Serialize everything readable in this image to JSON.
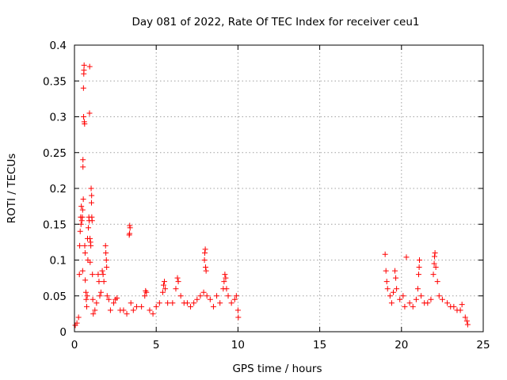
{
  "chart_data": {
    "type": "scatter",
    "title": "Day 081 of 2022, Rate Of TEC Index for receiver ceu1",
    "xlabel": "GPS time / hours",
    "ylabel": "ROTI / TECUs",
    "xlim": [
      0,
      25
    ],
    "ylim": [
      0,
      0.4
    ],
    "x_ticks": [
      0,
      5,
      10,
      15,
      20,
      25
    ],
    "x_tick_labels": [
      "0",
      "5",
      "10",
      "15",
      "20",
      "25"
    ],
    "y_ticks": [
      0,
      0.05,
      0.1,
      0.15,
      0.2,
      0.25,
      0.3,
      0.35,
      0.4
    ],
    "y_tick_labels": [
      "0",
      "0.05",
      "0.1",
      "0.15",
      "0.2",
      "0.25",
      "0.3",
      "0.35",
      "0.4"
    ],
    "grid": true,
    "marker": "plus",
    "marker_color": "#ff0000",
    "series": [
      {
        "name": "ROTI",
        "points": [
          [
            0.05,
            0.009
          ],
          [
            0.15,
            0.012
          ],
          [
            0.25,
            0.02
          ],
          [
            0.3,
            0.08
          ],
          [
            0.32,
            0.12
          ],
          [
            0.35,
            0.14
          ],
          [
            0.38,
            0.16
          ],
          [
            0.4,
            0.15
          ],
          [
            0.42,
            0.175
          ],
          [
            0.45,
            0.155
          ],
          [
            0.48,
            0.16
          ],
          [
            0.5,
            0.17
          ],
          [
            0.5,
            0.085
          ],
          [
            0.52,
            0.24
          ],
          [
            0.52,
            0.23
          ],
          [
            0.54,
            0.185
          ],
          [
            0.55,
            0.34
          ],
          [
            0.56,
            0.3
          ],
          [
            0.57,
            0.36
          ],
          [
            0.58,
            0.365
          ],
          [
            0.59,
            0.372
          ],
          [
            0.6,
            0.293
          ],
          [
            0.62,
            0.29
          ],
          [
            0.63,
            0.12
          ],
          [
            0.65,
            0.11
          ],
          [
            0.66,
            0.072
          ],
          [
            0.7,
            0.055
          ],
          [
            0.72,
            0.045
          ],
          [
            0.75,
            0.035
          ],
          [
            0.78,
            0.05
          ],
          [
            0.8,
            0.13
          ],
          [
            0.82,
            0.1
          ],
          [
            0.85,
            0.145
          ],
          [
            0.88,
            0.16
          ],
          [
            0.9,
            0.155
          ],
          [
            0.92,
            0.305
          ],
          [
            0.93,
            0.37
          ],
          [
            0.95,
            0.13
          ],
          [
            0.96,
            0.097
          ],
          [
            0.98,
            0.125
          ],
          [
            1.0,
            0.12
          ],
          [
            1.02,
            0.2
          ],
          [
            1.04,
            0.18
          ],
          [
            1.05,
            0.19
          ],
          [
            1.06,
            0.16
          ],
          [
            1.08,
            0.155
          ],
          [
            1.1,
            0.08
          ],
          [
            1.12,
            0.045
          ],
          [
            1.15,
            0.025
          ],
          [
            1.25,
            0.03
          ],
          [
            1.35,
            0.04
          ],
          [
            1.45,
            0.08
          ],
          [
            1.5,
            0.07
          ],
          [
            1.55,
            0.05
          ],
          [
            1.62,
            0.055
          ],
          [
            1.7,
            0.085
          ],
          [
            1.75,
            0.08
          ],
          [
            1.8,
            0.07
          ],
          [
            1.9,
            0.12
          ],
          [
            1.92,
            0.11
          ],
          [
            1.95,
            0.1
          ],
          [
            1.97,
            0.09
          ],
          [
            2.0,
            0.05
          ],
          [
            2.1,
            0.045
          ],
          [
            2.2,
            0.03
          ],
          [
            2.4,
            0.04
          ],
          [
            2.5,
            0.045
          ],
          [
            2.6,
            0.047
          ],
          [
            2.8,
            0.03
          ],
          [
            3.0,
            0.03
          ],
          [
            3.2,
            0.025
          ],
          [
            3.35,
            0.135
          ],
          [
            3.37,
            0.137
          ],
          [
            3.38,
            0.148
          ],
          [
            3.4,
            0.145
          ],
          [
            3.45,
            0.04
          ],
          [
            3.6,
            0.03
          ],
          [
            3.8,
            0.035
          ],
          [
            4.1,
            0.035
          ],
          [
            4.3,
            0.05
          ],
          [
            4.35,
            0.057
          ],
          [
            4.4,
            0.055
          ],
          [
            4.6,
            0.03
          ],
          [
            4.8,
            0.025
          ],
          [
            5.0,
            0.035
          ],
          [
            5.2,
            0.04
          ],
          [
            5.4,
            0.055
          ],
          [
            5.45,
            0.065
          ],
          [
            5.5,
            0.07
          ],
          [
            5.55,
            0.06
          ],
          [
            5.7,
            0.04
          ],
          [
            6.0,
            0.04
          ],
          [
            6.2,
            0.06
          ],
          [
            6.3,
            0.075
          ],
          [
            6.35,
            0.07
          ],
          [
            6.5,
            0.05
          ],
          [
            6.7,
            0.04
          ],
          [
            6.9,
            0.04
          ],
          [
            7.1,
            0.035
          ],
          [
            7.3,
            0.04
          ],
          [
            7.5,
            0.045
          ],
          [
            7.7,
            0.05
          ],
          [
            7.9,
            0.055
          ],
          [
            7.95,
            0.1
          ],
          [
            7.97,
            0.11
          ],
          [
            8.0,
            0.115
          ],
          [
            8.02,
            0.09
          ],
          [
            8.05,
            0.085
          ],
          [
            8.1,
            0.05
          ],
          [
            8.3,
            0.045
          ],
          [
            8.5,
            0.035
          ],
          [
            8.7,
            0.05
          ],
          [
            8.9,
            0.04
          ],
          [
            9.1,
            0.06
          ],
          [
            9.15,
            0.07
          ],
          [
            9.2,
            0.08
          ],
          [
            9.25,
            0.075
          ],
          [
            9.3,
            0.06
          ],
          [
            9.4,
            0.05
          ],
          [
            9.6,
            0.04
          ],
          [
            9.8,
            0.045
          ],
          [
            9.9,
            0.05
          ],
          [
            10.0,
            0.03
          ],
          [
            10.02,
            0.02
          ],
          [
            19.0,
            0.108
          ],
          [
            19.05,
            0.085
          ],
          [
            19.1,
            0.07
          ],
          [
            19.15,
            0.06
          ],
          [
            19.3,
            0.05
          ],
          [
            19.4,
            0.04
          ],
          [
            19.5,
            0.055
          ],
          [
            19.6,
            0.085
          ],
          [
            19.65,
            0.075
          ],
          [
            19.7,
            0.06
          ],
          [
            19.9,
            0.045
          ],
          [
            20.1,
            0.05
          ],
          [
            20.2,
            0.035
          ],
          [
            20.3,
            0.104
          ],
          [
            20.5,
            0.04
          ],
          [
            20.7,
            0.035
          ],
          [
            20.9,
            0.045
          ],
          [
            21.0,
            0.06
          ],
          [
            21.05,
            0.08
          ],
          [
            21.08,
            0.09
          ],
          [
            21.1,
            0.1
          ],
          [
            21.2,
            0.05
          ],
          [
            21.4,
            0.04
          ],
          [
            21.6,
            0.04
          ],
          [
            21.8,
            0.045
          ],
          [
            21.95,
            0.08
          ],
          [
            22.0,
            0.095
          ],
          [
            22.02,
            0.105
          ],
          [
            22.05,
            0.11
          ],
          [
            22.1,
            0.09
          ],
          [
            22.2,
            0.07
          ],
          [
            22.3,
            0.05
          ],
          [
            22.5,
            0.045
          ],
          [
            22.8,
            0.04
          ],
          [
            23.0,
            0.035
          ],
          [
            23.2,
            0.035
          ],
          [
            23.4,
            0.03
          ],
          [
            23.6,
            0.03
          ],
          [
            23.7,
            0.038
          ],
          [
            23.9,
            0.02
          ],
          [
            24.0,
            0.015
          ],
          [
            24.05,
            0.01
          ]
        ]
      }
    ]
  }
}
